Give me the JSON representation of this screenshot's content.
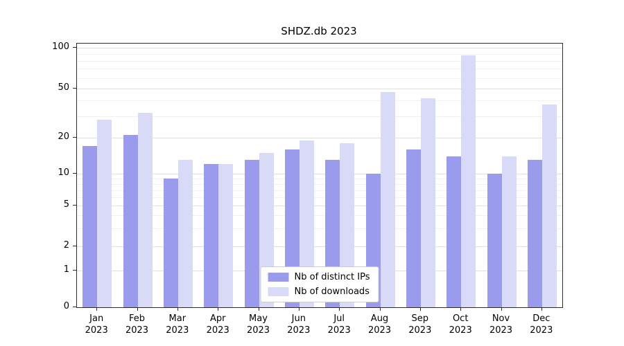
{
  "chart_data": {
    "type": "bar",
    "title": "SHDZ.db 2023",
    "categories": [
      "Jan",
      "Feb",
      "Mar",
      "Apr",
      "May",
      "Jun",
      "Jul",
      "Aug",
      "Sep",
      "Oct",
      "Nov",
      "Dec"
    ],
    "category_year": "2023",
    "series": [
      {
        "name": "Nb of distinct IPs",
        "color": "#9b9bee",
        "values": [
          17,
          21,
          9,
          12,
          13,
          16,
          13,
          10,
          16,
          14,
          10,
          13
        ]
      },
      {
        "name": "Nb of downloads",
        "color": "#d9d9f8",
        "values": [
          28,
          32,
          13,
          12,
          15,
          19,
          18,
          47,
          42,
          88,
          14,
          37
        ]
      }
    ],
    "yscale": "symlog",
    "yticks": [
      0,
      1,
      2,
      5,
      10,
      20,
      50,
      100
    ],
    "minor_yticks": [
      3,
      4,
      6,
      7,
      8,
      9,
      30,
      40,
      60,
      70,
      80,
      90
    ],
    "ylim": [
      0,
      100
    ],
    "grid": true,
    "legend_position": "lower center"
  }
}
